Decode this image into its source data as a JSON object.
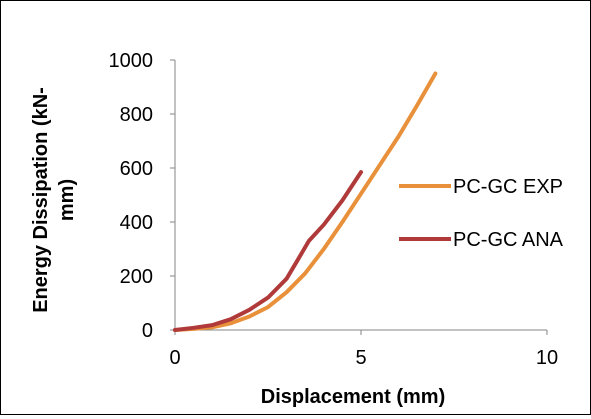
{
  "chart_data": {
    "type": "line",
    "title": "",
    "xlabel": "Displacement (mm)",
    "ylabel_lines": [
      "Energy Dissipation (kN-",
      "mm)"
    ],
    "xlim": [
      0,
      10
    ],
    "ylim": [
      0,
      1000
    ],
    "x_ticks": [
      0,
      5,
      10
    ],
    "y_ticks": [
      0,
      200,
      400,
      600,
      800,
      1000
    ],
    "x_tick_labels": [
      "0",
      "5",
      "10"
    ],
    "y_tick_labels": [
      "0",
      "200",
      "400",
      "600",
      "800",
      "1000"
    ],
    "grid": false,
    "legend_position": "right",
    "series": [
      {
        "name": "PC-GC EXP",
        "color": "#E8903A",
        "points": [
          [
            0,
            0
          ],
          [
            0.5,
            4
          ],
          [
            1,
            10
          ],
          [
            1.5,
            25
          ],
          [
            2,
            50
          ],
          [
            2.5,
            85
          ],
          [
            3,
            140
          ],
          [
            3.5,
            210
          ],
          [
            4,
            300
          ],
          [
            4.5,
            400
          ],
          [
            5,
            505
          ],
          [
            5.5,
            610
          ],
          [
            6,
            715
          ],
          [
            6.5,
            830
          ],
          [
            7,
            950
          ]
        ]
      },
      {
        "name": "PC-GC ANA",
        "color": "#B03A3A",
        "points": [
          [
            0,
            0
          ],
          [
            0.5,
            8
          ],
          [
            1,
            18
          ],
          [
            1.5,
            40
          ],
          [
            2,
            75
          ],
          [
            2.5,
            120
          ],
          [
            3,
            190
          ],
          [
            3.3,
            260
          ],
          [
            3.6,
            330
          ],
          [
            4,
            390
          ],
          [
            4.5,
            480
          ],
          [
            5,
            585
          ]
        ]
      }
    ]
  }
}
